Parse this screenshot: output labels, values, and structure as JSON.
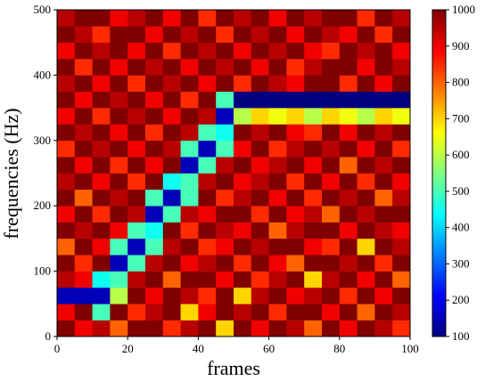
{
  "chart_data": {
    "type": "heatmap",
    "x_label": "frames",
    "y_label": "frequencies (Hz)",
    "xlim": [
      0,
      100
    ],
    "ylim": [
      0,
      500
    ],
    "xticks": [
      0,
      20,
      40,
      60,
      80,
      100
    ],
    "yticks": [
      0,
      100,
      200,
      300,
      400,
      500
    ],
    "x_edges": [
      0,
      5,
      10,
      15,
      20,
      25,
      30,
      35,
      40,
      45,
      50,
      55,
      60,
      65,
      70,
      75,
      80,
      85,
      90,
      95,
      100
    ],
    "y_edges": [
      0,
      25,
      50,
      75,
      100,
      125,
      150,
      175,
      200,
      225,
      250,
      275,
      300,
      325,
      350,
      375,
      400,
      425,
      450,
      475,
      500
    ],
    "colormap": "jet",
    "clim": [
      100,
      1000
    ],
    "cticks": [
      100,
      200,
      300,
      400,
      500,
      600,
      700,
      800,
      900,
      1000
    ],
    "z": [
      [
        1000,
        900,
        950,
        800,
        1000,
        1000,
        850,
        950,
        1000,
        700,
        1000,
        900,
        1000,
        950,
        800,
        1000,
        900,
        1000,
        950,
        850
      ],
      [
        900,
        1000,
        500,
        1000,
        850,
        950,
        1000,
        700,
        900,
        1000,
        950,
        1000,
        850,
        1000,
        1000,
        900,
        1000,
        800,
        1000,
        950
      ],
      [
        150,
        150,
        150,
        600,
        1000,
        900,
        1000,
        950,
        850,
        1000,
        700,
        950,
        1000,
        900,
        950,
        1000,
        850,
        1000,
        900,
        1000
      ],
      [
        950,
        900,
        450,
        500,
        950,
        1000,
        800,
        1000,
        1000,
        900,
        1000,
        850,
        950,
        1000,
        700,
        950,
        1000,
        900,
        1000,
        800
      ],
      [
        1000,
        850,
        1000,
        150,
        500,
        950,
        1000,
        900,
        950,
        1000,
        850,
        1000,
        900,
        800,
        1000,
        1000,
        950,
        1000,
        850,
        1000
      ],
      [
        800,
        1000,
        900,
        500,
        150,
        500,
        950,
        1000,
        850,
        900,
        1000,
        950,
        1000,
        1000,
        900,
        850,
        1000,
        700,
        1000,
        950
      ],
      [
        1000,
        950,
        1000,
        900,
        500,
        450,
        1000,
        850,
        1000,
        950,
        900,
        1000,
        800,
        950,
        1000,
        1000,
        900,
        1000,
        950,
        900
      ],
      [
        900,
        1000,
        850,
        1000,
        950,
        150,
        500,
        950,
        900,
        1000,
        1000,
        850,
        1000,
        900,
        950,
        800,
        1000,
        950,
        1000,
        1000
      ],
      [
        1000,
        800,
        1000,
        950,
        1000,
        500,
        150,
        500,
        1000,
        850,
        950,
        1000,
        900,
        1000,
        850,
        1000,
        950,
        1000,
        800,
        950
      ],
      [
        950,
        1000,
        900,
        1000,
        850,
        1000,
        450,
        500,
        950,
        1000,
        900,
        950,
        1000,
        850,
        1000,
        900,
        1000,
        850,
        1000,
        900
      ],
      [
        1000,
        900,
        1000,
        850,
        1000,
        900,
        1000,
        150,
        500,
        950,
        1000,
        900,
        950,
        1000,
        900,
        1000,
        800,
        1000,
        950,
        1000
      ],
      [
        850,
        1000,
        950,
        1000,
        900,
        1000,
        950,
        500,
        150,
        500,
        900,
        1000,
        850,
        950,
        1000,
        950,
        1000,
        900,
        1000,
        850
      ],
      [
        1000,
        950,
        1000,
        900,
        1000,
        850,
        1000,
        950,
        500,
        450,
        1000,
        950,
        1000,
        900,
        850,
        1000,
        900,
        1000,
        950,
        1000
      ],
      [
        900,
        1000,
        850,
        1000,
        950,
        1000,
        900,
        1000,
        950,
        150,
        600,
        700,
        650,
        700,
        600,
        700,
        650,
        600,
        700,
        650
      ],
      [
        1000,
        900,
        1000,
        950,
        1000,
        900,
        1000,
        850,
        1000,
        500,
        100,
        100,
        100,
        100,
        100,
        100,
        100,
        100,
        100,
        100
      ],
      [
        950,
        1000,
        900,
        1000,
        850,
        1000,
        950,
        1000,
        900,
        1000,
        850,
        1000,
        950,
        900,
        1000,
        1000,
        850,
        1000,
        900,
        1000
      ],
      [
        1000,
        850,
        1000,
        900,
        1000,
        950,
        1000,
        900,
        1000,
        950,
        1000,
        900,
        1000,
        850,
        950,
        1000,
        1000,
        900,
        1000,
        950
      ],
      [
        900,
        1000,
        950,
        1000,
        900,
        1000,
        850,
        1000,
        950,
        1000,
        900,
        1000,
        950,
        1000,
        900,
        850,
        1000,
        950,
        1000,
        900
      ],
      [
        1000,
        950,
        850,
        1000,
        1000,
        900,
        1000,
        950,
        1000,
        850,
        1000,
        950,
        1000,
        900,
        1000,
        950,
        900,
        1000,
        850,
        1000
      ],
      [
        950,
        1000,
        1000,
        900,
        950,
        1000,
        900,
        1000,
        850,
        1000,
        950,
        1000,
        900,
        1000,
        950,
        1000,
        1000,
        850,
        1000,
        950
      ]
    ]
  }
}
